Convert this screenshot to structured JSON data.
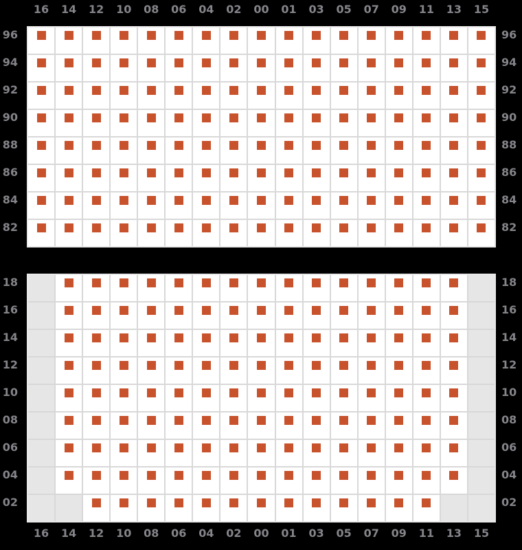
{
  "colors": {
    "background": "#000000",
    "cell": "#ffffff",
    "cell_disabled": "#e6e6e6",
    "grid_line": "#d8d8d8",
    "grid_border": "#e9e9e9",
    "marker": "#c7522c",
    "label": "#84848a"
  },
  "seat_map": {
    "cell_states": {
      "M": "available-seat",
      "E": "no-seat"
    },
    "columns": [
      "16",
      "14",
      "12",
      "10",
      "08",
      "06",
      "04",
      "02",
      "00",
      "01",
      "03",
      "05",
      "07",
      "09",
      "11",
      "13",
      "15"
    ],
    "sections": [
      {
        "name": "upper-section",
        "rows": [
          {
            "label": "96",
            "cells": "MMMMMMMMMMMMMMMMM"
          },
          {
            "label": "94",
            "cells": "MMMMMMMMMMMMMMMMM"
          },
          {
            "label": "92",
            "cells": "MMMMMMMMMMMMMMMMM"
          },
          {
            "label": "90",
            "cells": "MMMMMMMMMMMMMMMMM"
          },
          {
            "label": "88",
            "cells": "MMMMMMMMMMMMMMMMM"
          },
          {
            "label": "86",
            "cells": "MMMMMMMMMMMMMMMMM"
          },
          {
            "label": "84",
            "cells": "MMMMMMMMMMMMMMMMM"
          },
          {
            "label": "82",
            "cells": "MMMMMMMMMMMMMMMMM"
          }
        ]
      },
      {
        "name": "lower-section",
        "rows": [
          {
            "label": "18",
            "cells": "EMMMMMMMMMMMMMMME"
          },
          {
            "label": "16",
            "cells": "EMMMMMMMMMMMMMMME"
          },
          {
            "label": "14",
            "cells": "EMMMMMMMMMMMMMMME"
          },
          {
            "label": "12",
            "cells": "EMMMMMMMMMMMMMMME"
          },
          {
            "label": "10",
            "cells": "EMMMMMMMMMMMMMMME"
          },
          {
            "label": "08",
            "cells": "EMMMMMMMMMMMMMMME"
          },
          {
            "label": "06",
            "cells": "EMMMMMMMMMMMMMMME"
          },
          {
            "label": "04",
            "cells": "EMMMMMMMMMMMMMMME"
          },
          {
            "label": "02",
            "cells": "EEMMMMMMMMMMMMMEE"
          }
        ]
      }
    ]
  }
}
